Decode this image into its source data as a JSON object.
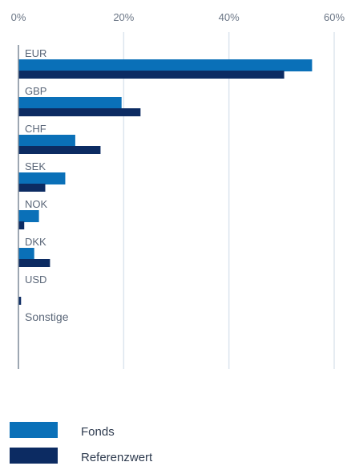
{
  "chart_data": {
    "type": "bar",
    "orientation": "horizontal",
    "categories": [
      "EUR",
      "GBP",
      "CHF",
      "SEK",
      "NOK",
      "DKK",
      "USD",
      "Sonstige"
    ],
    "series": [
      {
        "name": "Fonds",
        "color": "#0a70b8",
        "values": [
          55.8,
          19.6,
          10.8,
          8.9,
          3.9,
          3.0,
          0.0,
          0.0
        ]
      },
      {
        "name": "Referenzwert",
        "color": "#0c2b62",
        "values": [
          50.5,
          23.2,
          15.6,
          5.1,
          1.1,
          6.0,
          0.5,
          0.0
        ]
      }
    ],
    "x_ticks": [
      "0%",
      "20%",
      "40%",
      "60%"
    ],
    "x_tick_values": [
      0,
      20,
      40,
      60
    ],
    "xlim": [
      0,
      60
    ],
    "grid": true,
    "legend_position": "bottom"
  },
  "colors": {
    "fonds": "#0a70b8",
    "referenzwert": "#0c2b62",
    "grid": "#dde6ee",
    "axis": "#7d8a99",
    "text": "#5a6678"
  }
}
